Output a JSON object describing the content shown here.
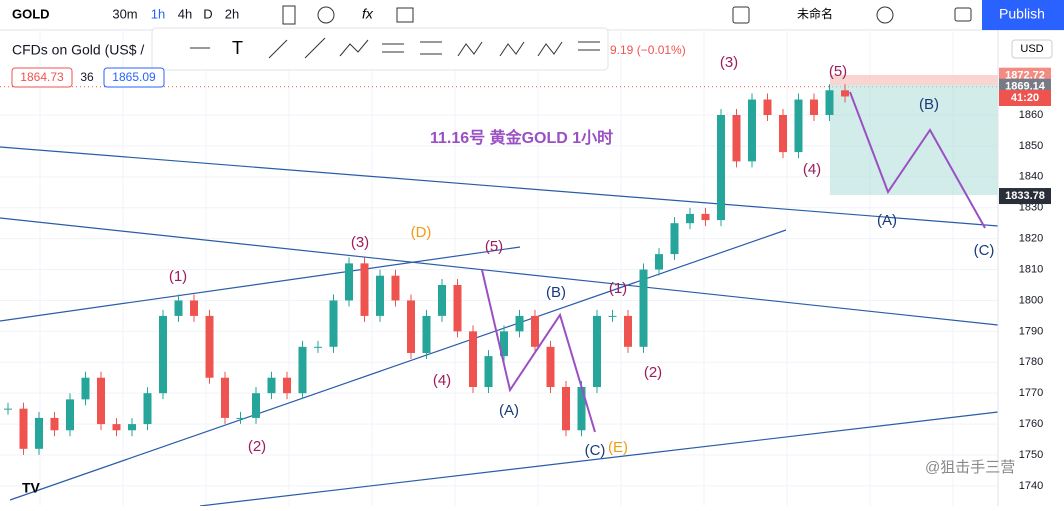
{
  "toolbar": {
    "symbol": "GOLD",
    "intervals": [
      "30m",
      "1h",
      "4h",
      "D",
      "2h"
    ],
    "layout_name": "未命名",
    "publish": "Publish"
  },
  "legend": {
    "title": "CFDs on Gold (US$ /",
    "change": "9.19 (−0.01%)",
    "bid": "1864.73",
    "spread": "36",
    "ask": "1865.09"
  },
  "watermark": "@狙击手三营",
  "chart_data": {
    "type": "candlestick",
    "title": "11.16号  黄金GOLD 1小时",
    "currency": "USD",
    "ylim": [
      1733.5,
      1887.5
    ],
    "yticks": [
      1740,
      1750,
      1760,
      1770,
      1780,
      1790,
      1800,
      1810,
      1820,
      1830,
      1840,
      1850,
      1860
    ],
    "up_color": "#26a69a",
    "down_color": "#ef5350",
    "grid": true,
    "price_labels": [
      {
        "value": 1872.72,
        "label": "1872.72",
        "color": "#f28b82"
      },
      {
        "value": 1869.14,
        "label": "1869.14",
        "color": "#787b86"
      },
      {
        "value": 1865.5,
        "label": "41:20",
        "color": "#ef5350"
      },
      {
        "value": 1833.78,
        "label": "1833.78",
        "color": "#2a2e39"
      }
    ],
    "closes": [
      1765,
      1752,
      1762,
      1758,
      1768,
      1775,
      1760,
      1758,
      1760,
      1770,
      1795,
      1800,
      1795,
      1775,
      1762,
      1762,
      1770,
      1775,
      1770,
      1785,
      1785,
      1800,
      1812,
      1795,
      1808,
      1800,
      1783,
      1795,
      1805,
      1790,
      1772,
      1782,
      1790,
      1795,
      1785,
      1772,
      1758,
      1772,
      1795,
      1795,
      1785,
      1810,
      1815,
      1825,
      1828,
      1826,
      1860,
      1845,
      1865,
      1860,
      1848,
      1865,
      1860,
      1868,
      1866
    ],
    "annotations": [
      {
        "text": "(1)",
        "color": "#9c1c5c"
      },
      {
        "text": "(2)",
        "color": "#9c1c5c"
      },
      {
        "text": "(3)",
        "color": "#9c1c5c"
      },
      {
        "text": "(4)",
        "color": "#9c1c5c"
      },
      {
        "text": "(5)",
        "color": "#9c1c5c"
      },
      {
        "text": "(D)",
        "color": "#f39c12"
      },
      {
        "text": "(A)",
        "color": "#1a3a7a"
      },
      {
        "text": "(B)",
        "color": "#1a3a7a"
      },
      {
        "text": "(C)",
        "color": "#1a3a7a"
      },
      {
        "text": "(E)",
        "color": "#f39c12"
      },
      {
        "text": "(1)",
        "color": "#9c1c5c"
      },
      {
        "text": "(2)",
        "color": "#9c1c5c"
      },
      {
        "text": "(3)",
        "color": "#9c1c5c"
      },
      {
        "text": "(4)",
        "color": "#9c1c5c"
      },
      {
        "text": "(5)",
        "color": "#9c1c5c"
      },
      {
        "text": "(B)",
        "color": "#1a3a7a"
      },
      {
        "text": "(A)",
        "color": "#1a3a7a"
      },
      {
        "text": "(C)",
        "color": "#1a3a7a"
      }
    ]
  }
}
